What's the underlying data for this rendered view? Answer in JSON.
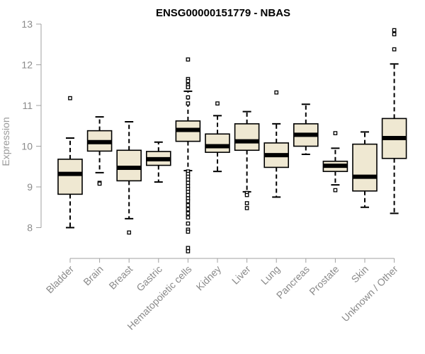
{
  "chart_data": {
    "type": "box",
    "title": "ENSG00000151779 - NBAS",
    "ylabel": "Expression",
    "xlabel": "",
    "ylim": [
      7.3,
      13.0
    ],
    "yticks": [
      8,
      9,
      10,
      11,
      12,
      13
    ],
    "box_fill": "#efe8d2",
    "categories": [
      "Bladder",
      "Brain",
      "Breast",
      "Gastric",
      "Hematopoietic cells",
      "Kidney",
      "Liver",
      "Lung",
      "Pancreas",
      "Prostate",
      "Skin",
      "Unknown / Other"
    ],
    "boxes": [
      {
        "whislo": 8.0,
        "q1": 8.82,
        "med": 9.32,
        "q3": 9.68,
        "whishi": 10.2,
        "fliers": [
          11.18
        ]
      },
      {
        "whislo": 9.35,
        "q1": 9.88,
        "med": 10.1,
        "q3": 10.38,
        "whishi": 10.72,
        "fliers": [
          9.1,
          9.08
        ]
      },
      {
        "whislo": 8.22,
        "q1": 9.15,
        "med": 9.47,
        "q3": 9.9,
        "whishi": 10.6,
        "fliers": [
          7.88
        ]
      },
      {
        "whislo": 9.12,
        "q1": 9.53,
        "med": 9.68,
        "q3": 9.87,
        "whishi": 10.1,
        "fliers": []
      },
      {
        "whislo": 9.4,
        "q1": 10.12,
        "med": 10.4,
        "q3": 10.62,
        "whishi": 11.35,
        "fliers": [
          12.13,
          11.65,
          11.6,
          11.5,
          11.45,
          11.2,
          11.05,
          9.38,
          9.32,
          9.25,
          9.18,
          9.1,
          9.02,
          8.95,
          8.88,
          8.8,
          8.72,
          8.65,
          8.55,
          8.45,
          8.35,
          8.25,
          8.1,
          7.95,
          7.9,
          7.5,
          7.42
        ]
      },
      {
        "whislo": 9.38,
        "q1": 9.85,
        "med": 10.0,
        "q3": 10.3,
        "whishi": 10.75,
        "fliers": [
          11.05
        ]
      },
      {
        "whislo": 8.88,
        "q1": 9.9,
        "med": 10.12,
        "q3": 10.55,
        "whishi": 10.85,
        "fliers": [
          8.85,
          8.8,
          8.6,
          8.48
        ]
      },
      {
        "whislo": 8.75,
        "q1": 9.48,
        "med": 9.78,
        "q3": 10.08,
        "whishi": 10.55,
        "fliers": [
          11.32
        ]
      },
      {
        "whislo": 9.8,
        "q1": 10.0,
        "med": 10.28,
        "q3": 10.55,
        "whishi": 11.03,
        "fliers": []
      },
      {
        "whislo": 9.05,
        "q1": 9.38,
        "med": 9.52,
        "q3": 9.63,
        "whishi": 9.95,
        "fliers": [
          10.32,
          8.92
        ]
      },
      {
        "whislo": 8.5,
        "q1": 8.9,
        "med": 9.25,
        "q3": 10.05,
        "whishi": 10.35,
        "fliers": []
      },
      {
        "whislo": 8.35,
        "q1": 9.7,
        "med": 10.2,
        "q3": 10.68,
        "whishi": 12.02,
        "fliers": [
          12.85,
          12.75,
          12.38
        ]
      }
    ]
  }
}
